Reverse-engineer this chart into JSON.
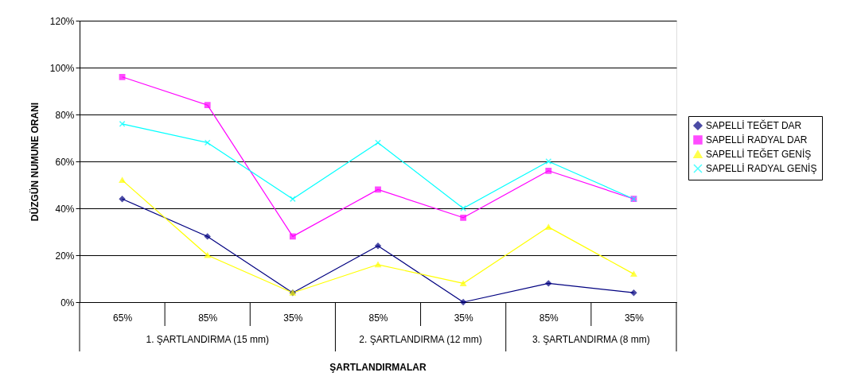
{
  "chart_data": {
    "type": "line",
    "xlabel": "ŞARTLANDIRMALAR",
    "ylabel": "DÜZGÜN NUMUNE ORANI",
    "categories": [
      "65%",
      "85%",
      "35%",
      "85%",
      "35%",
      "85%",
      "35%"
    ],
    "annotations": [
      "1. ŞARTLANDIRMA (15 mm)",
      "2. ŞARTLANDIRMA (12 mm)",
      "3. ŞARTLANDIRMA (8 mm)"
    ],
    "series": [
      {
        "name": "SAPELLİ TEĞET DAR",
        "color": "#000080",
        "marker": "diamond",
        "values": [
          44,
          28,
          4,
          24,
          0,
          8,
          4
        ]
      },
      {
        "name": "SAPELLİ RADYAL DAR",
        "color": "#ff00ff",
        "marker": "square",
        "values": [
          96,
          84,
          28,
          48,
          36,
          56,
          44
        ]
      },
      {
        "name": "SAPELLİ TEĞET GENİŞ",
        "color": "#ffff00",
        "marker": "triangle",
        "values": [
          52,
          20,
          4,
          16,
          8,
          32,
          12
        ]
      },
      {
        "name": "SAPELLİ RADYAL GENİŞ",
        "color": "#00ffff",
        "marker": "cross",
        "values": [
          76,
          68,
          44,
          68,
          40,
          60,
          44
        ]
      }
    ],
    "ylim": [
      0,
      120
    ],
    "yticks": [
      {
        "value": 0,
        "label": "0%"
      },
      {
        "value": 20,
        "label": "20%"
      },
      {
        "value": 40,
        "label": "40%"
      },
      {
        "value": 60,
        "label": "60%"
      },
      {
        "value": 80,
        "label": "80%"
      },
      {
        "value": 100,
        "label": "100%"
      },
      {
        "value": 120,
        "label": "120%"
      }
    ],
    "grid": "y",
    "legend": "right",
    "line_style": "solid"
  }
}
